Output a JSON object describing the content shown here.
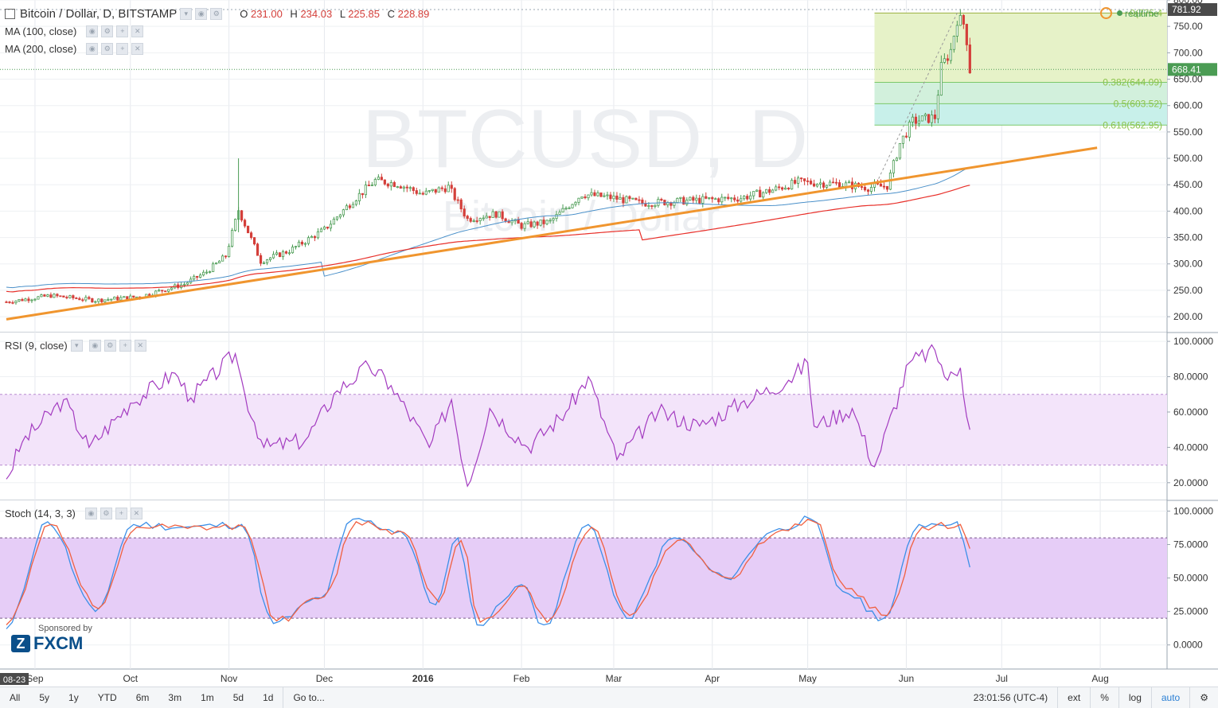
{
  "header": {
    "symbol": "Bitcoin / Dollar, D, BITSTAMP",
    "ohlc": {
      "o_label": "O",
      "o": "231.00",
      "h_label": "H",
      "h": "234.03",
      "l_label": "L",
      "l": "225.85",
      "c_label": "C",
      "c": "228.89"
    },
    "ma100_label": "MA (100, close)",
    "ma200_label": "MA (200, close)",
    "realtime": "realtime"
  },
  "watermark": {
    "main": "BTCUSD, D",
    "sub": "Bitcoin / Dollar"
  },
  "colors": {
    "up": "#4b9c54",
    "down": "#d43f3a",
    "ma100": "#4a90c9",
    "ma200": "#e8302a",
    "trend": "#f0952e",
    "rsi": "#a33bc0",
    "stoch_k": "#3b8fe8",
    "stoch_d": "#f06040",
    "fib_top": "#e6f2c8",
    "fib_mid": "#d2f0dc",
    "fib_low": "#c8f0ea",
    "rsi_band": "#f3e4fa",
    "stoch_band": "#e6cdf7",
    "accent": "#2a7fd4"
  },
  "chart_data": [
    {
      "type": "candlestick",
      "title": "BTCUSD, D",
      "subtitle": "Bitcoin / Dollar",
      "ylim": [
        170,
        800
      ],
      "y_ticks": [
        "800.00",
        "750.00",
        "700.00",
        "650.00",
        "600.00",
        "550.00",
        "500.00",
        "450.00",
        "400.00",
        "350.00",
        "300.00",
        "250.00",
        "200.00"
      ],
      "x_ticks": [
        "Sep",
        "Oct",
        "Nov",
        "Dec",
        "2016",
        "Feb",
        "Mar",
        "Apr",
        "May",
        "Jun",
        "Jul",
        "Aug"
      ],
      "x_start_label": "08-23",
      "last_price": "668.41",
      "high_price": "781.92",
      "fib_levels": [
        {
          "label": "0(775.4",
          "value": 775.4
        },
        {
          "label": "0.382(644.09)",
          "value": 644.09
        },
        {
          "label": "0.5(603.52)",
          "value": 603.52
        },
        {
          "label": "0.618(562.95)",
          "value": 562.95
        }
      ],
      "trendline": [
        {
          "x": "2015-08-23",
          "y": 195
        },
        {
          "x": "2016-07-31",
          "y": 520
        }
      ],
      "closes": [
        {
          "x": "2015-08-23",
          "y": 228
        },
        {
          "x": "2015-09-06",
          "y": 240
        },
        {
          "x": "2015-09-20",
          "y": 231
        },
        {
          "x": "2015-10-04",
          "y": 238
        },
        {
          "x": "2015-10-18",
          "y": 262
        },
        {
          "x": "2015-10-25",
          "y": 285
        },
        {
          "x": "2015-10-31",
          "y": 315
        },
        {
          "x": "2015-11-04",
          "y": 402
        },
        {
          "x": "2015-11-06",
          "y": 375
        },
        {
          "x": "2015-11-11",
          "y": 305
        },
        {
          "x": "2015-11-20",
          "y": 325
        },
        {
          "x": "2015-12-01",
          "y": 365
        },
        {
          "x": "2015-12-10",
          "y": 420
        },
        {
          "x": "2015-12-17",
          "y": 458
        },
        {
          "x": "2015-12-24",
          "y": 452
        },
        {
          "x": "2016-01-01",
          "y": 432
        },
        {
          "x": "2016-01-09",
          "y": 446
        },
        {
          "x": "2016-01-15",
          "y": 385
        },
        {
          "x": "2016-01-24",
          "y": 395
        },
        {
          "x": "2016-02-01",
          "y": 372
        },
        {
          "x": "2016-02-10",
          "y": 380
        },
        {
          "x": "2016-02-20",
          "y": 432
        },
        {
          "x": "2016-03-01",
          "y": 425
        },
        {
          "x": "2016-03-10",
          "y": 415
        },
        {
          "x": "2016-03-25",
          "y": 420
        },
        {
          "x": "2016-04-10",
          "y": 425
        },
        {
          "x": "2016-04-20",
          "y": 440
        },
        {
          "x": "2016-04-28",
          "y": 455
        },
        {
          "x": "2016-05-10",
          "y": 452
        },
        {
          "x": "2016-05-20",
          "y": 445
        },
        {
          "x": "2016-05-26",
          "y": 448
        },
        {
          "x": "2016-05-30",
          "y": 528
        },
        {
          "x": "2016-06-03",
          "y": 570
        },
        {
          "x": "2016-06-10",
          "y": 578
        },
        {
          "x": "2016-06-12",
          "y": 672
        },
        {
          "x": "2016-06-15",
          "y": 705
        },
        {
          "x": "2016-06-17",
          "y": 765
        },
        {
          "x": "2016-06-19",
          "y": 755
        },
        {
          "x": "2016-06-20",
          "y": 725
        },
        {
          "x": "2016-06-21",
          "y": 668
        }
      ]
    },
    {
      "type": "line",
      "title": "RSI (9, close)",
      "ylim": [
        10,
        105
      ],
      "y_ticks": [
        "100.0000",
        "80.0000",
        "60.0000",
        "40.0000",
        "20.0000"
      ],
      "band": [
        30,
        70
      ],
      "series": [
        {
          "name": "RSI",
          "values": [
            {
              "x": "2015-08-23",
              "y": 22
            },
            {
              "x": "2015-08-28",
              "y": 43
            },
            {
              "x": "2015-09-10",
              "y": 67
            },
            {
              "x": "2015-09-18",
              "y": 40
            },
            {
              "x": "2015-10-01",
              "y": 65
            },
            {
              "x": "2015-10-15",
              "y": 82
            },
            {
              "x": "2015-10-20",
              "y": 68
            },
            {
              "x": "2015-11-03",
              "y": 93
            },
            {
              "x": "2015-11-06",
              "y": 70
            },
            {
              "x": "2015-11-12",
              "y": 40
            },
            {
              "x": "2015-11-25",
              "y": 44
            },
            {
              "x": "2015-12-05",
              "y": 72
            },
            {
              "x": "2015-12-15",
              "y": 86
            },
            {
              "x": "2015-12-22",
              "y": 75
            },
            {
              "x": "2016-01-03",
              "y": 40
            },
            {
              "x": "2016-01-10",
              "y": 67
            },
            {
              "x": "2016-01-15",
              "y": 18
            },
            {
              "x": "2016-01-22",
              "y": 62
            },
            {
              "x": "2016-02-03",
              "y": 40
            },
            {
              "x": "2016-02-15",
              "y": 60
            },
            {
              "x": "2016-02-22",
              "y": 80
            },
            {
              "x": "2016-03-02",
              "y": 33
            },
            {
              "x": "2016-03-15",
              "y": 60
            },
            {
              "x": "2016-03-28",
              "y": 52
            },
            {
              "x": "2016-04-10",
              "y": 65
            },
            {
              "x": "2016-04-25",
              "y": 78
            },
            {
              "x": "2016-05-01",
              "y": 88
            },
            {
              "x": "2016-05-03",
              "y": 52
            },
            {
              "x": "2016-05-15",
              "y": 62
            },
            {
              "x": "2016-05-22",
              "y": 29
            },
            {
              "x": "2016-06-02",
              "y": 88
            },
            {
              "x": "2016-06-10",
              "y": 95
            },
            {
              "x": "2016-06-14",
              "y": 78
            },
            {
              "x": "2016-06-18",
              "y": 85
            },
            {
              "x": "2016-06-21",
              "y": 50
            }
          ]
        }
      ]
    },
    {
      "type": "line",
      "title": "Stoch (14, 3, 3)",
      "ylim": [
        -18,
        108
      ],
      "y_ticks": [
        "100.0000",
        "75.0000",
        "50.0000",
        "25.0000",
        "0.0000"
      ],
      "band": [
        20,
        80
      ],
      "series": [
        {
          "name": "%K",
          "values": [
            {
              "x": "2015-08-23",
              "y": 12
            },
            {
              "x": "2015-09-05",
              "y": 92
            },
            {
              "x": "2015-09-20",
              "y": 25
            },
            {
              "x": "2015-10-02",
              "y": 90
            },
            {
              "x": "2015-10-18",
              "y": 88
            },
            {
              "x": "2015-11-05",
              "y": 90
            },
            {
              "x": "2015-11-15",
              "y": 16
            },
            {
              "x": "2015-11-30",
              "y": 35
            },
            {
              "x": "2015-12-10",
              "y": 94
            },
            {
              "x": "2015-12-25",
              "y": 85
            },
            {
              "x": "2016-01-05",
              "y": 30
            },
            {
              "x": "2016-01-12",
              "y": 80
            },
            {
              "x": "2016-01-18",
              "y": 15
            },
            {
              "x": "2016-02-01",
              "y": 45
            },
            {
              "x": "2016-02-08",
              "y": 15
            },
            {
              "x": "2016-02-22",
              "y": 90
            },
            {
              "x": "2016-03-05",
              "y": 20
            },
            {
              "x": "2016-03-20",
              "y": 80
            },
            {
              "x": "2016-04-05",
              "y": 50
            },
            {
              "x": "2016-04-20",
              "y": 85
            },
            {
              "x": "2016-05-02",
              "y": 94
            },
            {
              "x": "2016-05-12",
              "y": 40
            },
            {
              "x": "2016-05-25",
              "y": 20
            },
            {
              "x": "2016-06-05",
              "y": 90
            },
            {
              "x": "2016-06-17",
              "y": 92
            },
            {
              "x": "2016-06-21",
              "y": 58
            }
          ]
        },
        {
          "name": "%D",
          "values": [
            {
              "x": "2015-08-23",
              "y": 15
            },
            {
              "x": "2015-09-06",
              "y": 90
            },
            {
              "x": "2015-09-21",
              "y": 27
            },
            {
              "x": "2015-10-03",
              "y": 88
            },
            {
              "x": "2015-10-19",
              "y": 87
            },
            {
              "x": "2015-11-06",
              "y": 88
            },
            {
              "x": "2015-11-16",
              "y": 18
            },
            {
              "x": "2015-12-01",
              "y": 36
            },
            {
              "x": "2015-12-11",
              "y": 92
            },
            {
              "x": "2015-12-26",
              "y": 84
            },
            {
              "x": "2016-01-06",
              "y": 32
            },
            {
              "x": "2016-01-13",
              "y": 78
            },
            {
              "x": "2016-01-19",
              "y": 17
            },
            {
              "x": "2016-02-02",
              "y": 44
            },
            {
              "x": "2016-02-09",
              "y": 17
            },
            {
              "x": "2016-02-23",
              "y": 88
            },
            {
              "x": "2016-03-06",
              "y": 22
            },
            {
              "x": "2016-03-21",
              "y": 78
            },
            {
              "x": "2016-04-06",
              "y": 50
            },
            {
              "x": "2016-04-21",
              "y": 84
            },
            {
              "x": "2016-05-03",
              "y": 92
            },
            {
              "x": "2016-05-13",
              "y": 42
            },
            {
              "x": "2016-05-26",
              "y": 22
            },
            {
              "x": "2016-06-06",
              "y": 88
            },
            {
              "x": "2016-06-18",
              "y": 90
            },
            {
              "x": "2016-06-21",
              "y": 72
            }
          ]
        }
      ]
    }
  ],
  "sponsor": {
    "label": "Sponsored by",
    "brand": "FXCM"
  },
  "bottom": {
    "ranges": [
      "All",
      "5y",
      "1y",
      "YTD",
      "6m",
      "3m",
      "1m",
      "5d",
      "1d"
    ],
    "goto": "Go to...",
    "time": "23:01:56 (UTC-4)",
    "right": [
      "ext",
      "%",
      "log",
      "auto"
    ]
  }
}
